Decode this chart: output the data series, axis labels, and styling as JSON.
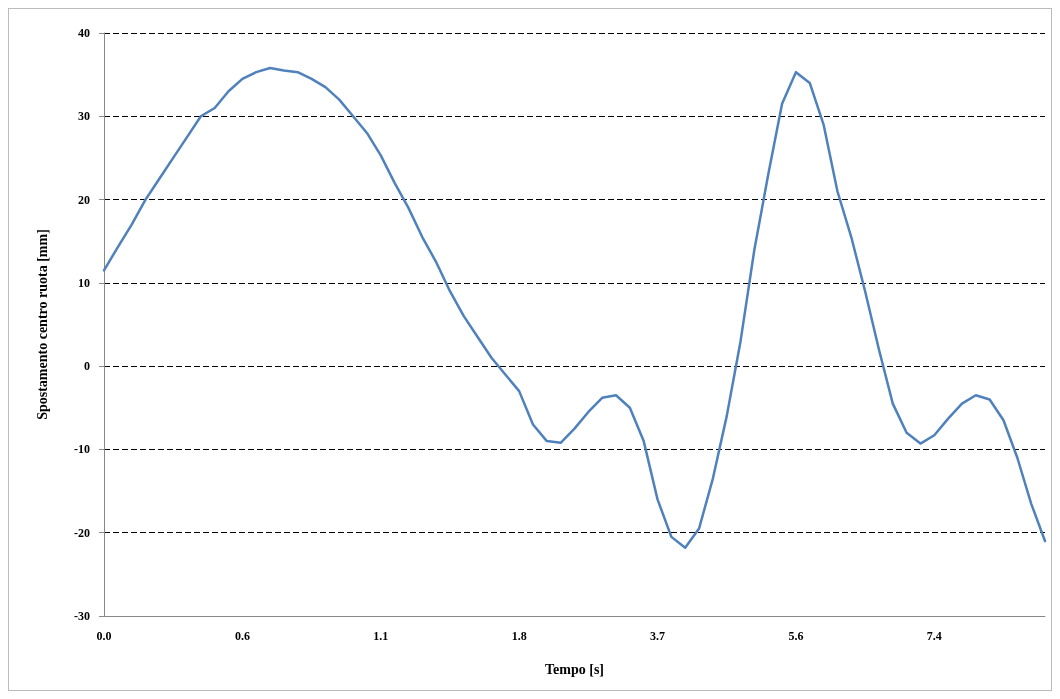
{
  "chart_data": {
    "type": "line",
    "xlabel": "Tempo [s]",
    "ylabel": "Spostamento centro ruota [mm]",
    "categories": [
      "0.0",
      null,
      null,
      null,
      null,
      null,
      null,
      null,
      null,
      null,
      "0.6",
      null,
      null,
      null,
      null,
      null,
      null,
      null,
      null,
      null,
      "1.1",
      null,
      null,
      null,
      null,
      null,
      null,
      null,
      null,
      null,
      "1.8",
      null,
      null,
      null,
      null,
      null,
      null,
      null,
      null,
      null,
      "3.7",
      null,
      null,
      null,
      null,
      null,
      null,
      null,
      null,
      null,
      "5.6",
      null,
      null,
      null,
      null,
      null,
      null,
      null,
      null,
      null,
      "7.4",
      null,
      null,
      null,
      null,
      null,
      null,
      null,
      null
    ],
    "series": [
      {
        "color": "#4f81bd",
        "values": [
          11.5,
          14.3,
          17,
          20,
          22.5,
          25,
          27.5,
          30,
          31,
          33,
          34.5,
          35.3,
          35.8,
          35.5,
          35.3,
          34.5,
          33.5,
          32,
          30,
          28,
          25.3,
          22,
          19,
          15.5,
          12.5,
          9,
          6,
          3.5,
          1,
          -1,
          -3,
          -7,
          -9,
          -9.2,
          -7.5,
          -5.5,
          -3.8,
          -3.5,
          -5,
          -9,
          -16,
          -20.5,
          -21.8,
          -19.5,
          -13.5,
          -6,
          3,
          14,
          23,
          31.5,
          35.3,
          34,
          29,
          21,
          15.5,
          9,
          2,
          -4.5,
          -8,
          -9.3,
          -8.3,
          -6.3,
          -4.5,
          -3.5,
          -4,
          -6.5,
          -11,
          -16.5,
          -21
        ]
      }
    ],
    "ylim": [
      -30,
      40
    ],
    "yticks": [
      -30,
      -20,
      -10,
      0,
      10,
      20,
      30,
      40
    ],
    "grid": "y",
    "line_style": "solid",
    "marker": "none"
  }
}
